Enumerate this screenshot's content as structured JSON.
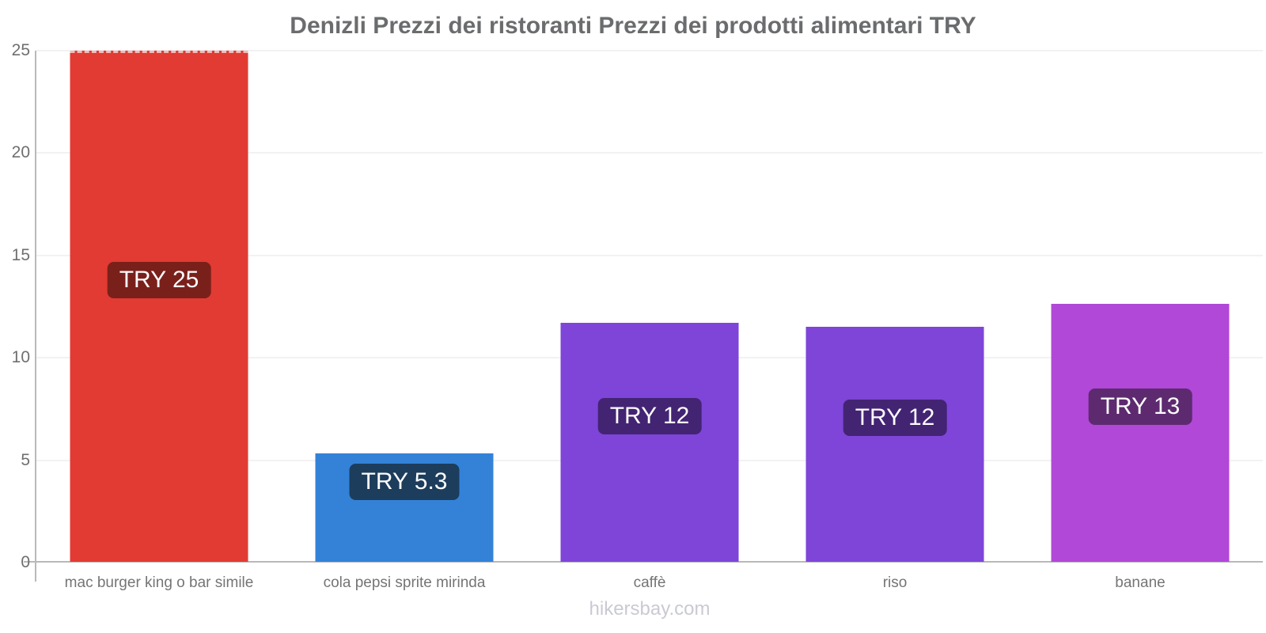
{
  "title": "Denizli Prezzi dei ristoranti Prezzi dei prodotti alimentari TRY",
  "footer": "hikersbay.com",
  "chart_data": {
    "type": "bar",
    "title": "Denizli Prezzi dei ristoranti Prezzi dei prodotti alimentari TRY",
    "currency": "TRY",
    "categories": [
      "mac burger king o bar simile",
      "cola pepsi sprite mirinda",
      "caffè",
      "riso",
      "banane"
    ],
    "values": [
      25,
      5.3,
      11.7,
      11.5,
      12.6
    ],
    "bar_labels": [
      "TRY 25",
      "TRY 5.3",
      "TRY 12",
      "TRY 12",
      "TRY 13"
    ],
    "bar_colors": [
      "#e13b33",
      "#3382d8",
      "#7e45d8",
      "#7e45d8",
      "#b148d8"
    ],
    "label_bg_colors": [
      "#7a201b",
      "#1d3d5c",
      "#432473",
      "#432473",
      "#5d2a70"
    ],
    "xlabel": "",
    "ylabel": "",
    "ylim": [
      0,
      25
    ],
    "yticks": [
      0,
      5,
      10,
      15,
      20,
      25
    ],
    "grid": "horizontal",
    "legend": "none",
    "watermark": "hikersbay.com"
  }
}
